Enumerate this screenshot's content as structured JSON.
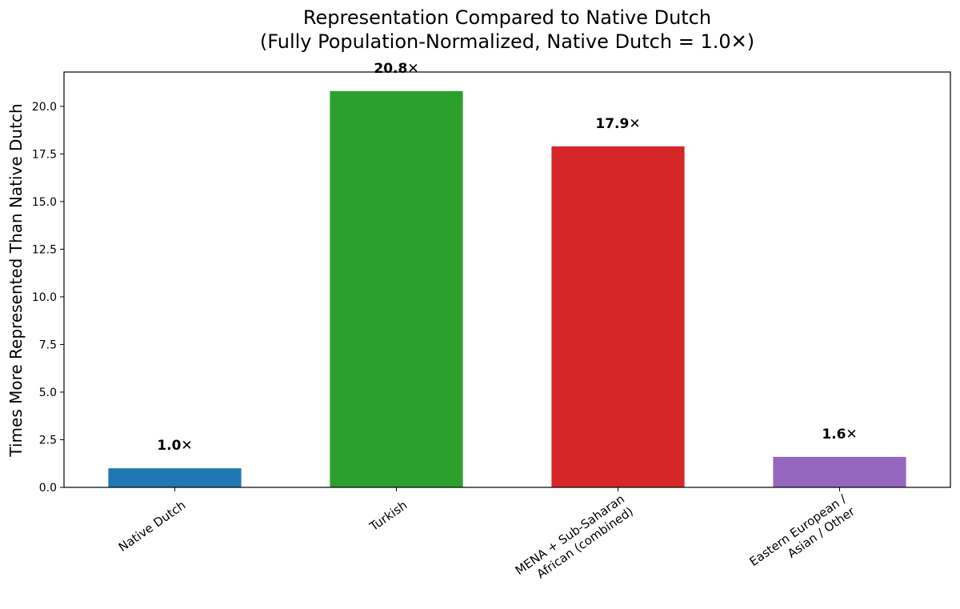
{
  "chart_data": {
    "type": "bar",
    "title": "Representation Compared to Native Dutch",
    "subtitle": "(Fully Population-Normalized, Native Dutch = 1.0✕)",
    "xlabel": "",
    "ylabel": "Times More Represented Than Native Dutch",
    "ylim": [
      0,
      21.8
    ],
    "yticks": [
      0,
      2.5,
      5,
      7.5,
      10,
      12.5,
      15,
      17.5,
      20
    ],
    "ytick_labels": [
      "0.0",
      "2.5",
      "5.0",
      "7.5",
      "10.0",
      "12.5",
      "15.0",
      "17.5",
      "20.0"
    ],
    "grid": false,
    "legend": "none",
    "categories": [
      [
        "Native Dutch"
      ],
      [
        "Turkish"
      ],
      [
        "MENA + Sub-Saharan",
        "African (combined)"
      ],
      [
        "Eastern European /",
        "Asian / Other"
      ]
    ],
    "values": [
      1.0,
      20.8,
      17.9,
      1.6
    ],
    "data_labels": [
      "1.0✕",
      "20.8✕",
      "17.9✕",
      "1.6✕"
    ],
    "colors": [
      "#1f77b4",
      "#2ca02c",
      "#d62728",
      "#9467bd"
    ]
  }
}
